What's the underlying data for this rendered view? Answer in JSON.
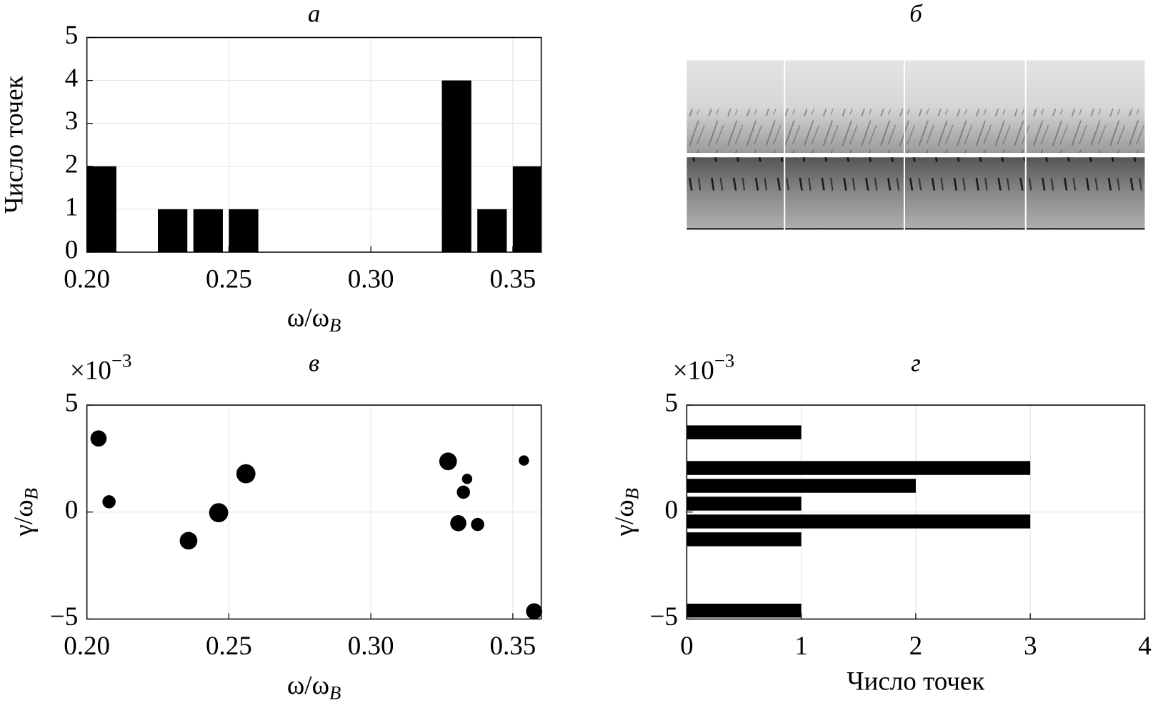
{
  "chart_data": [
    {
      "type": "histogram",
      "orientation": "vertical",
      "title": "а",
      "x_label": {
        "main": "ω/ω",
        "sub": "B"
      },
      "y_label": "Число точек",
      "bins": [
        0.2,
        0.2125,
        0.225,
        0.2375,
        0.25,
        0.2625,
        0.275,
        0.2875,
        0.3,
        0.3125,
        0.325,
        0.3375,
        0.35,
        0.3625
      ],
      "values": [
        2,
        0,
        1,
        1,
        1,
        0,
        0,
        0,
        0,
        0,
        4,
        1,
        2
      ],
      "color": "#000000",
      "xlim": [
        0.2,
        0.36
      ],
      "xticks": [
        {
          "value": 0.2,
          "label": "0.20"
        },
        0.25,
        {
          "value": 0.3,
          "label": "0.30"
        },
        0.35
      ],
      "ylim": [
        0,
        5
      ],
      "yticks": [
        0,
        1,
        2,
        3,
        4,
        5
      ],
      "grid": true
    },
    {
      "type": "image",
      "title": "б"
    },
    {
      "type": "scatter",
      "title": "в",
      "x_label": {
        "main": "ω/ω",
        "sub": "B"
      },
      "y_label": {
        "main": "γ/ω",
        "sub": "B"
      },
      "multiplier": {
        "base": "×10",
        "exp": "−3"
      },
      "x": [
        0.2041,
        0.2078,
        0.2358,
        0.2464,
        0.256,
        0.3272,
        0.3339,
        0.3326,
        0.3308,
        0.3376,
        0.3539,
        0.3575
      ],
      "y": [
        3.44,
        0.48,
        -1.34,
        -0.03,
        1.79,
        2.37,
        1.55,
        0.93,
        -0.52,
        -0.58,
        2.41,
        -4.64
      ],
      "sizes": [
        11,
        9,
        12,
        13,
        13,
        12,
        7,
        9,
        11,
        9,
        7,
        11
      ],
      "color": "#000000",
      "xlim": [
        0.2,
        0.36
      ],
      "xticks": [
        {
          "value": 0.2,
          "label": "0.20"
        },
        0.25,
        {
          "value": 0.3,
          "label": "0.30"
        },
        0.35
      ],
      "ylim": [
        -5,
        5
      ],
      "yticks": [
        {
          "value": -5,
          "label": "−5"
        },
        0,
        5
      ],
      "grid": true
    },
    {
      "type": "histogram",
      "orientation": "horizontal",
      "title": "г",
      "x_label": "Число точек",
      "y_label": {
        "main": "γ/ω",
        "sub": "B"
      },
      "multiplier": {
        "base": "×10",
        "exp": "−3"
      },
      "bins": [
        -5,
        -4.1667,
        -3.3333,
        -2.5,
        -1.6667,
        -0.8333,
        0,
        0.8333,
        1.6667,
        2.5,
        3.3333,
        4.1667,
        5
      ],
      "values": [
        1,
        0,
        0,
        0,
        1,
        3,
        1,
        2,
        3,
        0,
        1,
        0
      ],
      "color": "#000000",
      "xlim": [
        0,
        4
      ],
      "xticks": [
        0,
        1,
        2,
        3,
        4
      ],
      "ylim": [
        -5,
        5
      ],
      "yticks": [
        {
          "value": -5,
          "label": "−5"
        },
        0,
        5
      ],
      "grid": true
    }
  ]
}
